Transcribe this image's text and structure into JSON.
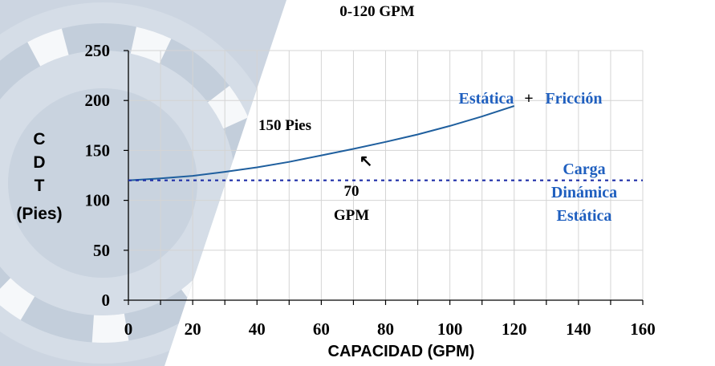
{
  "chart_data": {
    "type": "line",
    "title": "0-120 GPM",
    "xlabel": "CAPACIDAD (GPM)",
    "ylabel_lines": [
      "C",
      "D",
      "T",
      "(Pies)"
    ],
    "xlim": [
      0,
      160
    ],
    "ylim": [
      0,
      250
    ],
    "xticks": [
      0,
      20,
      40,
      60,
      80,
      100,
      120,
      140,
      160
    ],
    "yticks": [
      0,
      50,
      100,
      150,
      200,
      250
    ],
    "grid": true,
    "series": [
      {
        "key": "total",
        "x": [
          0,
          10,
          20,
          30,
          40,
          50,
          60,
          70,
          80,
          90,
          100,
          110,
          120
        ],
        "y": [
          120,
          122,
          124.5,
          128.5,
          133,
          138.5,
          145,
          151.5,
          158.5,
          166,
          174.5,
          184,
          194.5
        ],
        "color": "#1f5f9e"
      },
      {
        "key": "static",
        "x": [
          0,
          160
        ],
        "y": [
          120,
          120
        ],
        "color": "#1f2fa8",
        "dashed": true
      }
    ],
    "annotations": {
      "curve_label_1": "Estática",
      "curve_label_plus": "+",
      "curve_label_2": "Fricción",
      "point_value": "150 Pies",
      "point_flow_1": "70",
      "point_flow_2": "GPM",
      "static_label_1": "Carga",
      "static_label_2": "Dinámica",
      "static_label_3": "Estática",
      "arrow_glyph": "↖"
    },
    "label_color": "#1f5fbf"
  }
}
